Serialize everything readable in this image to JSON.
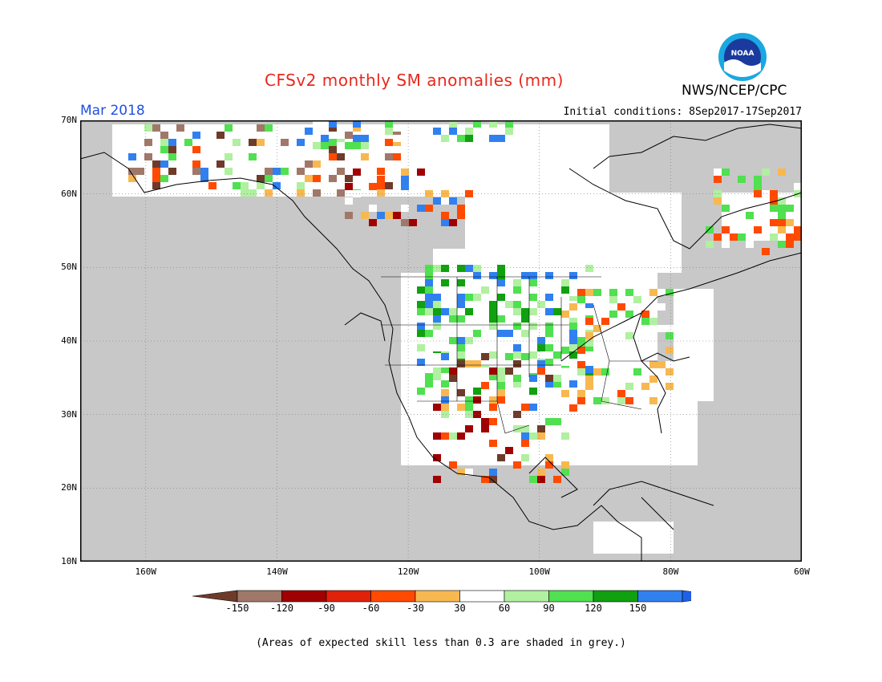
{
  "header": {
    "title": "CFSv2 monthly SM anomalies (mm)",
    "month": "Mar 2018",
    "initial_conditions": "Initial conditions: 8Sep2017-17Sep2017",
    "org": "NWS/NCEP/CPC",
    "logo_text": "NOAA"
  },
  "map": {
    "region": "North America",
    "lat_labels": [
      "70N",
      "60N",
      "50N",
      "40N",
      "30N",
      "20N",
      "10N"
    ],
    "lon_labels": [
      "160W",
      "140W",
      "120W",
      "100W",
      "80W",
      "60W"
    ],
    "land_color": "#c8c8c8",
    "ocean_color": "#c8c8c8",
    "neutral_color": "#ffffff"
  },
  "legend": {
    "labels": [
      "-150",
      "-120",
      "-90",
      "-60",
      "-30",
      "30",
      "60",
      "90",
      "120",
      "150"
    ],
    "colors": [
      "#6e3b2a",
      "#a0786a",
      "#a00000",
      "#e0220a",
      "#ff4a00",
      "#f8b850",
      "#ffffff",
      "#b0f0a0",
      "#50e050",
      "#10a010",
      "#3080f0",
      "#2060e8"
    ]
  },
  "footer": {
    "note": "(Areas of expected skill less than 0.3 are shaded in grey.)"
  }
}
